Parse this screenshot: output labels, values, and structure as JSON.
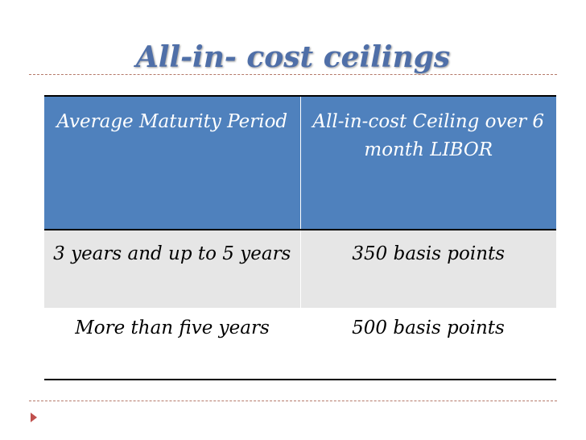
{
  "header": {
    "title": "All-in- cost ceilings"
  },
  "table": {
    "header": [
      "Average Maturity Period",
      "All-in-cost Ceiling over 6 month LIBOR"
    ],
    "rows": [
      [
        "3 years and up to 5 years",
        "350 basis points"
      ],
      [
        "More than five years",
        "500 basis points"
      ]
    ]
  }
}
